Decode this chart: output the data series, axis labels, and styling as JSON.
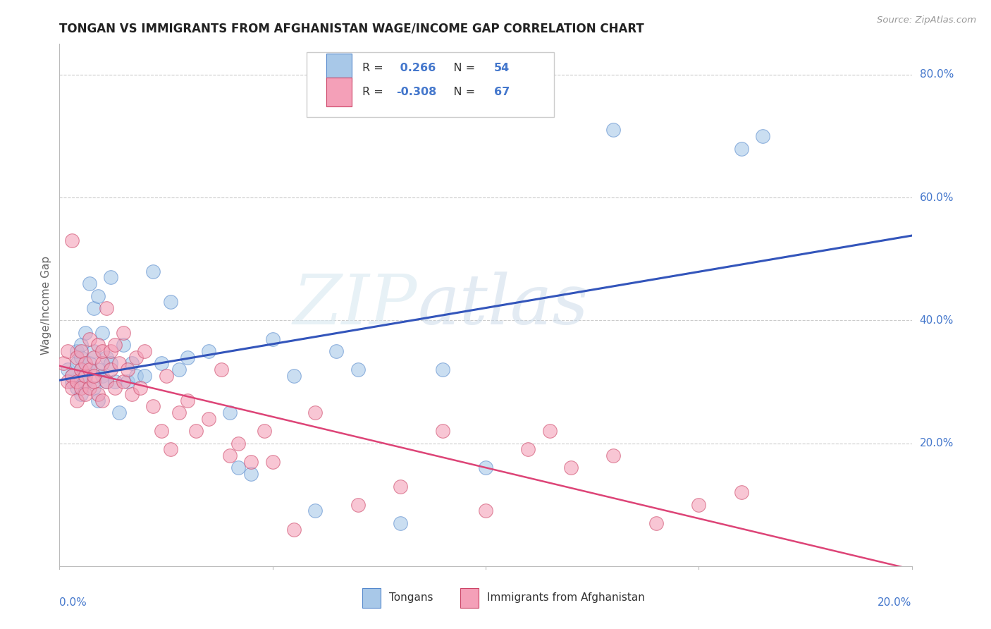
{
  "title": "TONGAN VS IMMIGRANTS FROM AFGHANISTAN WAGE/INCOME GAP CORRELATION CHART",
  "source": "Source: ZipAtlas.com",
  "ylabel": "Wage/Income Gap",
  "series1_label": "Tongans",
  "series2_label": "Immigrants from Afghanistan",
  "series1_color": "#a8c8e8",
  "series2_color": "#f4a0b8",
  "series1_edge": "#5588cc",
  "series2_edge": "#cc4466",
  "line1_color": "#3355bb",
  "line2_color": "#dd4477",
  "watermark_zip": "ZIP",
  "watermark_atlas": "atlas",
  "background_color": "#ffffff",
  "grid_color": "#cccccc",
  "title_color": "#222222",
  "axis_label_color": "#4477cc",
  "r1_val": "0.266",
  "r2_val": "-0.308",
  "n1_val": "54",
  "n2_val": "67",
  "xlim": [
    0.0,
    0.2
  ],
  "ylim": [
    0.0,
    0.85
  ],
  "ytick_positions": [
    0.2,
    0.4,
    0.6,
    0.8
  ],
  "ytick_labels": [
    "20.0%",
    "40.0%",
    "60.0%",
    "80.0%"
  ],
  "tongans_x": [
    0.002,
    0.003,
    0.003,
    0.004,
    0.004,
    0.004,
    0.005,
    0.005,
    0.005,
    0.005,
    0.006,
    0.006,
    0.006,
    0.007,
    0.007,
    0.008,
    0.008,
    0.008,
    0.009,
    0.009,
    0.009,
    0.01,
    0.01,
    0.011,
    0.011,
    0.012,
    0.012,
    0.013,
    0.014,
    0.015,
    0.016,
    0.017,
    0.018,
    0.02,
    0.022,
    0.024,
    0.026,
    0.028,
    0.03,
    0.035,
    0.04,
    0.042,
    0.045,
    0.05,
    0.055,
    0.06,
    0.065,
    0.07,
    0.08,
    0.09,
    0.1,
    0.13,
    0.16,
    0.165
  ],
  "tongans_y": [
    0.32,
    0.3,
    0.31,
    0.33,
    0.29,
    0.35,
    0.34,
    0.28,
    0.32,
    0.36,
    0.38,
    0.31,
    0.3,
    0.46,
    0.33,
    0.35,
    0.42,
    0.29,
    0.44,
    0.32,
    0.27,
    0.38,
    0.31,
    0.34,
    0.3,
    0.33,
    0.47,
    0.3,
    0.25,
    0.36,
    0.3,
    0.33,
    0.31,
    0.31,
    0.48,
    0.33,
    0.43,
    0.32,
    0.34,
    0.35,
    0.25,
    0.16,
    0.15,
    0.37,
    0.31,
    0.09,
    0.35,
    0.32,
    0.07,
    0.32,
    0.16,
    0.71,
    0.68,
    0.7
  ],
  "afghanistan_x": [
    0.001,
    0.002,
    0.002,
    0.003,
    0.003,
    0.003,
    0.004,
    0.004,
    0.004,
    0.005,
    0.005,
    0.005,
    0.006,
    0.006,
    0.006,
    0.007,
    0.007,
    0.007,
    0.008,
    0.008,
    0.008,
    0.009,
    0.009,
    0.01,
    0.01,
    0.01,
    0.011,
    0.011,
    0.012,
    0.012,
    0.013,
    0.013,
    0.014,
    0.015,
    0.015,
    0.016,
    0.017,
    0.018,
    0.019,
    0.02,
    0.022,
    0.024,
    0.025,
    0.026,
    0.028,
    0.03,
    0.032,
    0.035,
    0.038,
    0.04,
    0.042,
    0.045,
    0.048,
    0.05,
    0.055,
    0.06,
    0.07,
    0.08,
    0.09,
    0.1,
    0.11,
    0.115,
    0.12,
    0.13,
    0.14,
    0.15,
    0.16
  ],
  "afghanistan_y": [
    0.33,
    0.35,
    0.3,
    0.31,
    0.29,
    0.53,
    0.34,
    0.3,
    0.27,
    0.32,
    0.29,
    0.35,
    0.31,
    0.28,
    0.33,
    0.32,
    0.37,
    0.29,
    0.34,
    0.3,
    0.31,
    0.28,
    0.36,
    0.33,
    0.27,
    0.35,
    0.42,
    0.3,
    0.35,
    0.32,
    0.29,
    0.36,
    0.33,
    0.38,
    0.3,
    0.32,
    0.28,
    0.34,
    0.29,
    0.35,
    0.26,
    0.22,
    0.31,
    0.19,
    0.25,
    0.27,
    0.22,
    0.24,
    0.32,
    0.18,
    0.2,
    0.17,
    0.22,
    0.17,
    0.06,
    0.25,
    0.1,
    0.13,
    0.22,
    0.09,
    0.19,
    0.22,
    0.16,
    0.18,
    0.07,
    0.1,
    0.12
  ]
}
